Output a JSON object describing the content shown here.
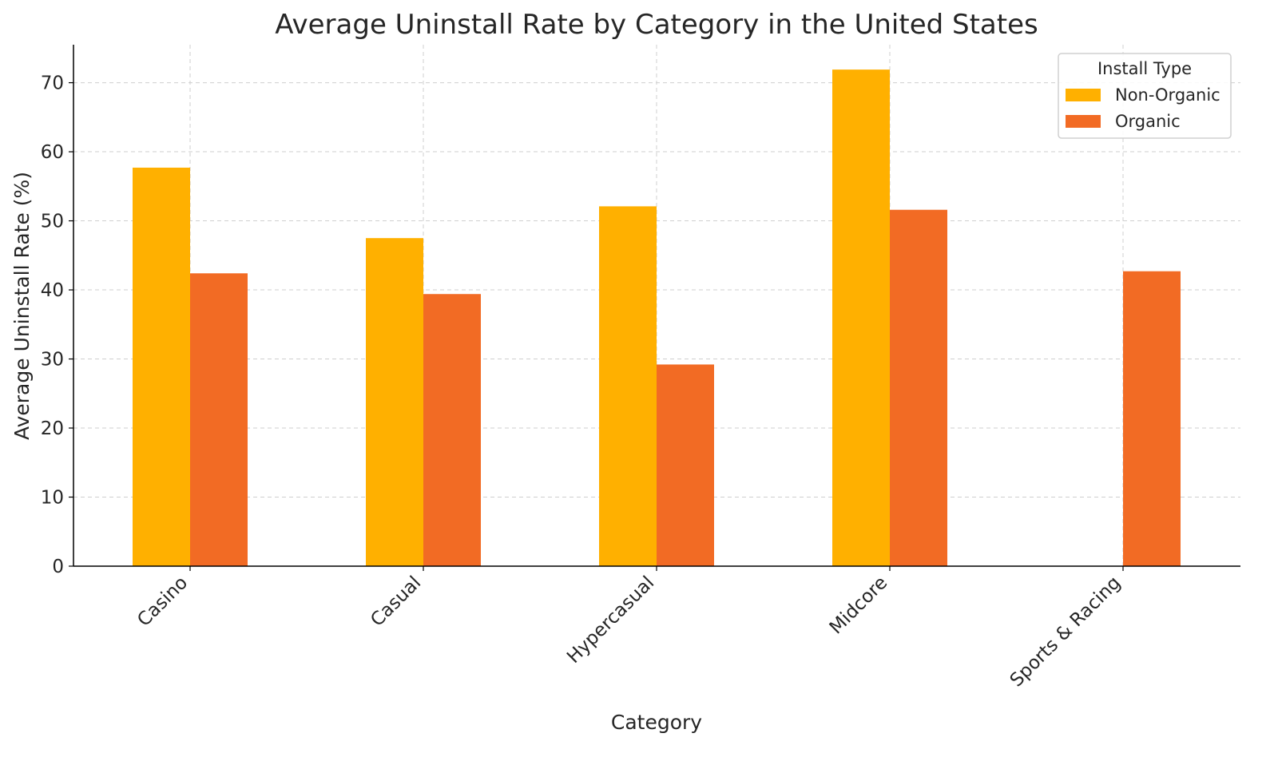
{
  "chart_data": {
    "type": "bar",
    "title": "Average Uninstall Rate by Category in the United States",
    "xlabel": "Category",
    "ylabel": "Average Uninstall Rate (%)",
    "categories": [
      "Casino",
      "Casual",
      "Hypercasual",
      "Midcore",
      "Sports & Racing"
    ],
    "series": [
      {
        "name": "Non-Organic",
        "color": "#FFB000",
        "values": [
          57.7,
          47.5,
          52.1,
          71.9,
          null
        ]
      },
      {
        "name": "Organic",
        "color": "#F26B24",
        "values": [
          42.4,
          39.4,
          29.2,
          51.6,
          42.7
        ]
      }
    ],
    "ylim": [
      0,
      75.5
    ],
    "yticks": [
      0,
      10,
      20,
      30,
      40,
      50,
      60,
      70
    ],
    "grid": true,
    "legend": {
      "title": "Install Type",
      "placement": "top-right"
    }
  }
}
